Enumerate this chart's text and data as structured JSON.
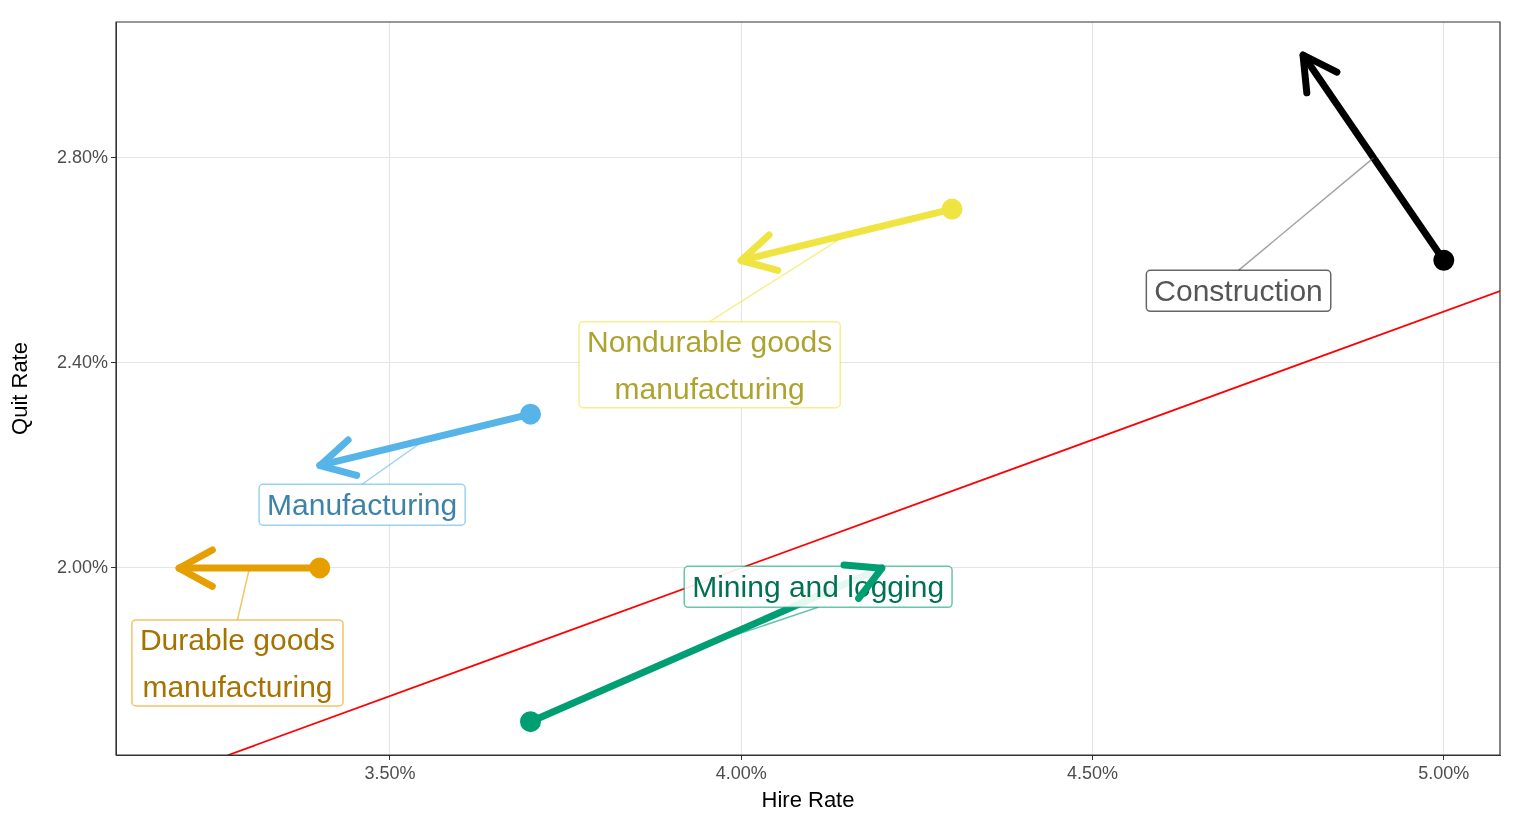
{
  "chart_data": {
    "type": "line",
    "xlabel": "Hire Rate",
    "ylabel": "Quit Rate",
    "xlim": [
      3.11,
      5.08
    ],
    "ylim": [
      1.635,
      3.065
    ],
    "xticks": [
      {
        "value": 3.5,
        "label": "3.50%"
      },
      {
        "value": 4.0,
        "label": "4.00%"
      },
      {
        "value": 4.5,
        "label": "4.50%"
      },
      {
        "value": 5.0,
        "label": "5.00%"
      }
    ],
    "yticks": [
      {
        "value": 2.0,
        "label": "2.00%"
      },
      {
        "value": 2.4,
        "label": "2.40%"
      },
      {
        "value": 2.8,
        "label": "2.80%"
      }
    ],
    "grid": true,
    "legend": false,
    "series": [
      {
        "color": "#000000",
        "x": [
          5.0,
          4.8
        ],
        "values": [
          2.6,
          3.0
        ],
        "marker": "circle"
      },
      {
        "color": "#f0e442",
        "x": [
          4.3,
          4.0
        ],
        "values": [
          2.7,
          2.6
        ],
        "marker": "circle"
      },
      {
        "color": "#56b4e9",
        "x": [
          3.7,
          3.4
        ],
        "values": [
          2.3,
          2.2
        ],
        "marker": "circle"
      },
      {
        "color": "#e69f00",
        "x": [
          3.4,
          3.2
        ],
        "values": [
          2.0,
          2.0
        ],
        "marker": "circle"
      },
      {
        "color": "#009e73",
        "x": [
          3.7,
          4.2
        ],
        "values": [
          1.7,
          2.0
        ],
        "marker": "circle"
      },
      {
        "color": "#ff0000",
        "x": [
          3.27,
          5.08
        ],
        "values": [
          1.635,
          2.54
        ],
        "marker": "none"
      }
    ],
    "annotations": [
      {
        "text": "Construction",
        "x": 4.9,
        "y": 2.8
      },
      {
        "text": "Nondurable goods\nmanufacturing",
        "x": 4.15,
        "y": 2.65
      },
      {
        "text": "Manufacturing",
        "x": 3.55,
        "y": 2.25
      },
      {
        "text": "Durable goods\nmanufacturing",
        "x": 3.3,
        "y": 2.0
      },
      {
        "text": "Mining and logging",
        "x": 3.95,
        "y": 1.85
      }
    ]
  }
}
